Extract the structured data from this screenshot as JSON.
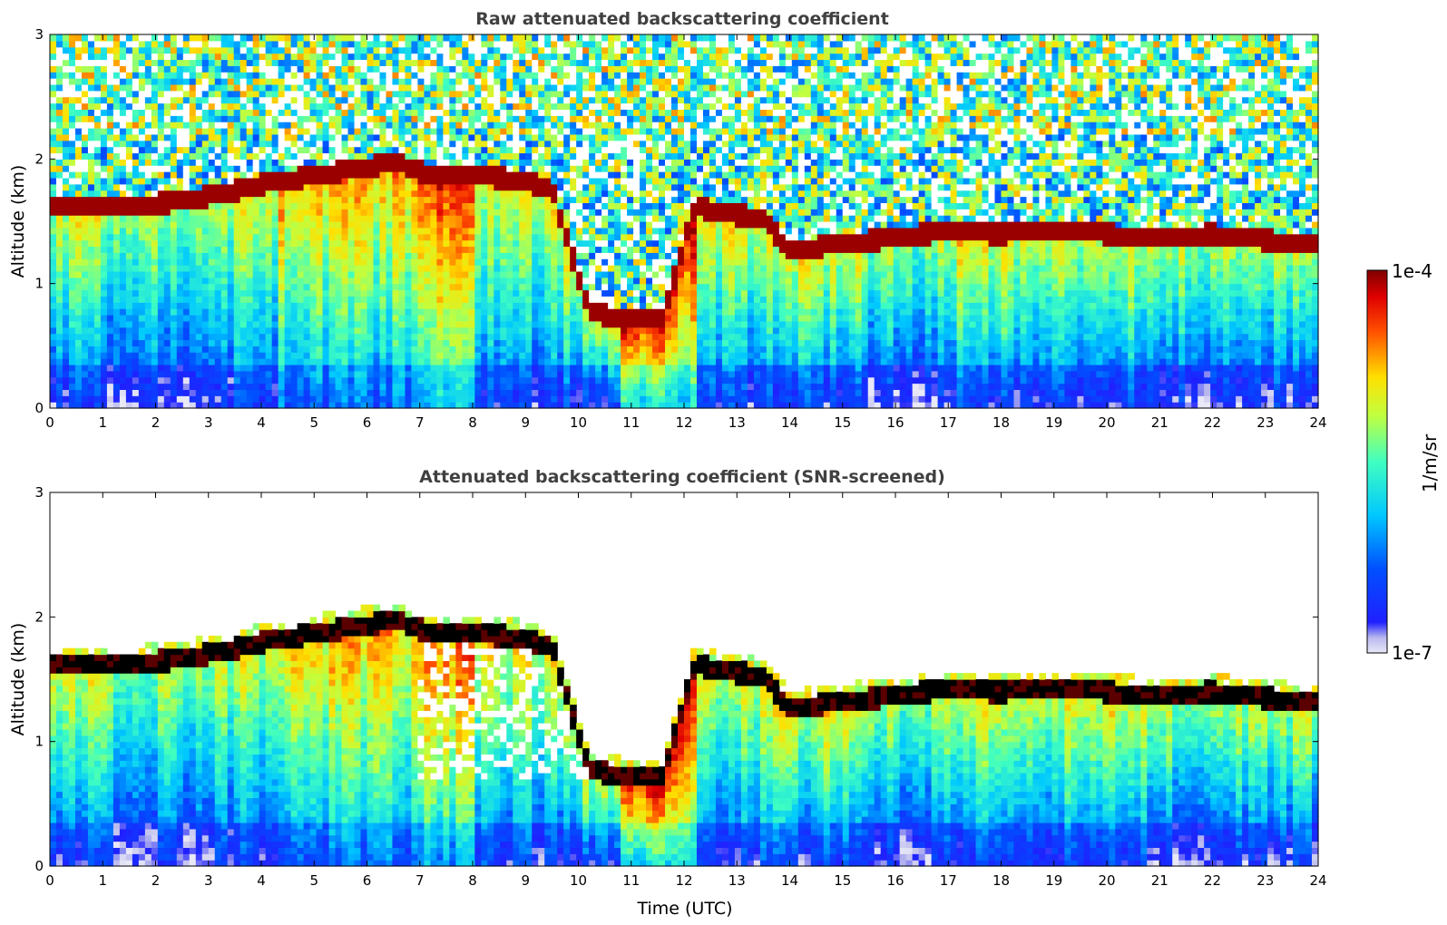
{
  "chart_data": [
    {
      "type": "heatmap",
      "title": "Raw attenuated backscattering coefficient",
      "ylabel": "Altitude (km)",
      "xlabel": "",
      "xlim": [
        0,
        24
      ],
      "ylim": [
        0,
        3
      ],
      "xticks": [
        "0",
        "1",
        "2",
        "3",
        "4",
        "5",
        "6",
        "7",
        "8",
        "9",
        "10",
        "11",
        "12",
        "13",
        "14",
        "15",
        "16",
        "17",
        "18",
        "19",
        "20",
        "21",
        "22",
        "23",
        "24"
      ],
      "yticks": [
        "0",
        "1",
        "2",
        "3"
      ],
      "screened": false,
      "cloud_base_km": {
        "time_h": [
          0,
          1,
          2,
          3,
          4,
          5,
          6,
          6.6,
          7.2,
          8,
          8.8,
          9.5,
          10.2,
          11,
          11.6,
          12.2,
          12.8,
          13.5,
          14,
          15,
          16,
          17,
          18,
          19,
          20,
          21,
          22,
          23,
          24
        ],
        "alt_km": [
          1.6,
          1.6,
          1.62,
          1.68,
          1.78,
          1.85,
          1.92,
          1.95,
          1.85,
          1.85,
          1.82,
          1.75,
          0.75,
          0.7,
          0.7,
          1.6,
          1.55,
          1.5,
          1.25,
          1.3,
          1.35,
          1.4,
          1.38,
          1.42,
          1.38,
          1.35,
          1.38,
          1.33,
          1.3
        ]
      }
    },
    {
      "type": "heatmap",
      "title": "Attenuated backscattering coefficient (SNR-screened)",
      "ylabel": "Altitude (km)",
      "xlabel": "Time (UTC)",
      "xlim": [
        0,
        24
      ],
      "ylim": [
        0,
        3
      ],
      "xticks": [
        "0",
        "1",
        "2",
        "3",
        "4",
        "5",
        "6",
        "7",
        "8",
        "9",
        "10",
        "11",
        "12",
        "13",
        "14",
        "15",
        "16",
        "17",
        "18",
        "19",
        "20",
        "21",
        "22",
        "23",
        "24"
      ],
      "yticks": [
        "0",
        "1",
        "2",
        "3"
      ],
      "screened": true
    }
  ],
  "colorbar": {
    "label": "1/m/sr",
    "max_label": "1e-4",
    "min_label": "1e-7",
    "scale": "log",
    "colormap": "jet",
    "colors": [
      "#e6e6f5",
      "#c8c8f0",
      "#0000ff",
      "#0080ff",
      "#00e0e0",
      "#80ff80",
      "#ffff00",
      "#ff8000",
      "#ff0000",
      "#800000"
    ]
  }
}
